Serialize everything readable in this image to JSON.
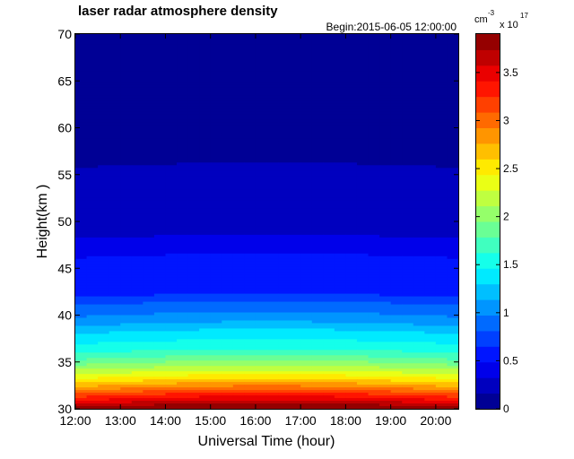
{
  "chart_data": {
    "type": "heatmap",
    "title": "laser radar atmosphere density",
    "subtitle": "Begin:2015-06-05  12:00:00",
    "xlabel": "Universal Time  (hour)",
    "ylabel": "Height(km )",
    "xlim": [
      12,
      20.5
    ],
    "ylim": [
      30,
      70
    ],
    "x_ticks": [
      "12:00",
      "13:00",
      "14:00",
      "15:00",
      "16:00",
      "17:00",
      "18:00",
      "19:00",
      "20:00"
    ],
    "y_ticks": [
      "30",
      "35",
      "40",
      "45",
      "50",
      "55",
      "60",
      "65",
      "70"
    ],
    "colorbar": {
      "unit": "cm",
      "unit_exponent": "-3",
      "scale_label": "x 10",
      "scale_exponent": "17",
      "range": [
        0,
        3.9
      ],
      "ticks": [
        "0",
        "0.5",
        "1",
        "1.5",
        "2",
        "2.5",
        "3",
        "3.5"
      ],
      "colormap": "jet",
      "levels": 24
    },
    "density_profile": {
      "height_km": [
        30,
        31,
        32,
        33,
        34,
        35,
        36,
        37,
        38,
        39,
        40,
        41,
        42,
        44,
        46,
        47,
        50,
        55,
        56,
        60,
        65,
        70
      ],
      "density_1e17_cm3": [
        3.8,
        3.35,
        2.9,
        2.5,
        2.15,
        1.85,
        1.6,
        1.45,
        1.3,
        1.1,
        0.95,
        0.82,
        0.62,
        0.5,
        0.5,
        0.34,
        0.3,
        0.27,
        0.13,
        0.12,
        0.1,
        0.08
      ]
    }
  }
}
